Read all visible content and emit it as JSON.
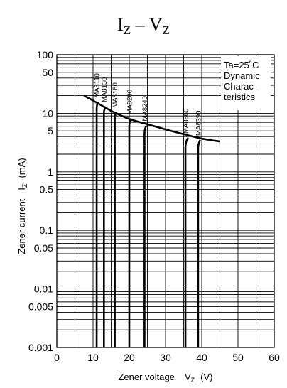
{
  "chart_data": {
    "type": "line",
    "title": {
      "i": "I",
      "i_sub": "Z",
      "dash": " – ",
      "v": "V",
      "v_sub": "Z"
    },
    "xlabel": {
      "text": "Zener voltage",
      "sym": "V",
      "sub": "Z",
      "unit": "(V)"
    },
    "ylabel": {
      "text": "Zener current",
      "sym": "I",
      "sub": "Z",
      "unit": "(mA)"
    },
    "xlim": [
      0,
      60
    ],
    "ylim": [
      0.001,
      100
    ],
    "yscale": "log",
    "x_ticks": [
      "0",
      "10",
      "20",
      "30",
      "40",
      "50",
      "60"
    ],
    "y_ticks": [
      {
        "value": 100,
        "label": "100"
      },
      {
        "value": 50,
        "label": "50"
      },
      {
        "value": 10,
        "label": "10"
      },
      {
        "value": 5,
        "label": "5"
      },
      {
        "value": 1,
        "label": "1"
      },
      {
        "value": 0.5,
        "label": "0.5"
      },
      {
        "value": 0.1,
        "label": "0.1"
      },
      {
        "value": 0.05,
        "label": "0.05"
      },
      {
        "value": 0.01,
        "label": "0.01"
      },
      {
        "value": 0.005,
        "label": "0.005"
      },
      {
        "value": 0.001,
        "label": "0.001"
      }
    ],
    "grid": true,
    "annotation": [
      "Ta=25˚C",
      "Dynamic",
      "Charac-",
      "teristics"
    ],
    "series": [
      {
        "name": "MA8110",
        "points": [
          [
            11,
            0.001
          ],
          [
            11,
            12
          ],
          [
            11.4,
            15.5
          ]
        ]
      },
      {
        "name": "MA8130",
        "points": [
          [
            13,
            0.001
          ],
          [
            13,
            10
          ],
          [
            13.5,
            13
          ]
        ]
      },
      {
        "name": "MA8160",
        "points": [
          [
            16,
            0.001
          ],
          [
            16,
            8
          ],
          [
            16.5,
            10.5
          ]
        ]
      },
      {
        "name": "MA8200",
        "points": [
          [
            20,
            0.001
          ],
          [
            20,
            6
          ],
          [
            20.6,
            8
          ]
        ]
      },
      {
        "name": "MA8240",
        "points": [
          [
            24.2,
            0.001
          ],
          [
            24.2,
            4.5
          ],
          [
            24.8,
            6.2
          ]
        ]
      },
      {
        "name": "MA8360",
        "points": [
          [
            35.5,
            0.001
          ],
          [
            35.5,
            2.6
          ],
          [
            36.3,
            3.8
          ]
        ]
      },
      {
        "name": "MA8390",
        "points": [
          [
            39,
            0.001
          ],
          [
            39,
            2.4
          ],
          [
            39.6,
            3.5
          ]
        ]
      }
    ],
    "envelope": [
      [
        7.5,
        20
      ],
      [
        10,
        16.5
      ],
      [
        15,
        11
      ],
      [
        20,
        8
      ],
      [
        25,
        6.5
      ],
      [
        30,
        5.3
      ],
      [
        35,
        4.4
      ],
      [
        40,
        3.7
      ],
      [
        45,
        3.3
      ]
    ]
  }
}
